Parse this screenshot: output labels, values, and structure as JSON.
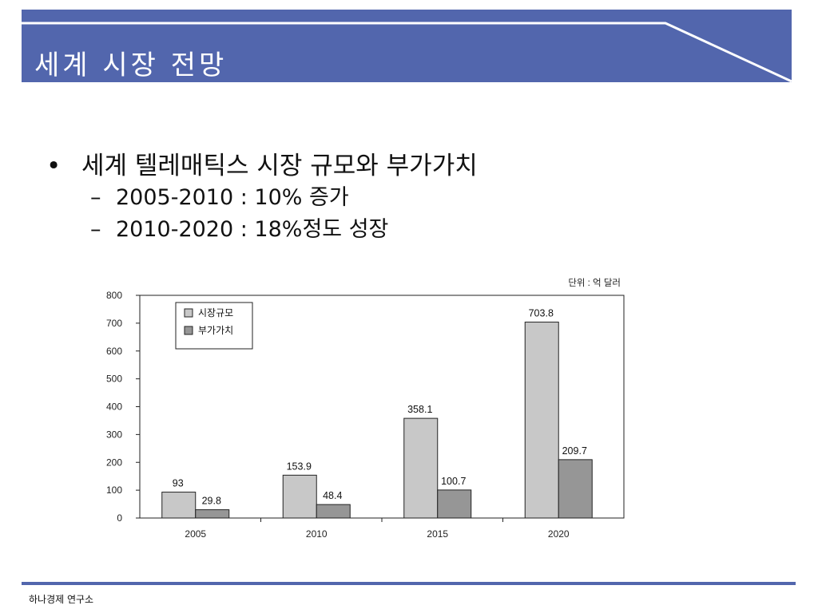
{
  "header": {
    "title": "세계 시장 전망"
  },
  "bullets": {
    "main": "세계  텔레매틱스 시장 규모와 부가가치",
    "sub": [
      "2005-2010 : 10% 증가",
      "2010-2020 : 18%정도 성장"
    ]
  },
  "footer": {
    "org": "하나경제 연구소"
  },
  "colors": {
    "accent": "#5266ad",
    "series1": "#c8c8c8",
    "series2": "#969696"
  },
  "chart_data": {
    "type": "bar",
    "unit_note": "단위 : 억 달러",
    "categories": [
      "2005",
      "2010",
      "2015",
      "2020"
    ],
    "series": [
      {
        "name": "시장규모",
        "values": [
          93,
          153.9,
          358.1,
          703.8
        ],
        "labels": [
          "93",
          "153.9",
          "358.1",
          "703.8"
        ]
      },
      {
        "name": "부가가치",
        "values": [
          29.8,
          48.4,
          100.7,
          209.7
        ],
        "labels": [
          "29.8",
          "48.4",
          "100.7",
          "209.7"
        ]
      }
    ],
    "yticks": [
      0,
      100,
      200,
      300,
      400,
      500,
      600,
      700,
      800
    ],
    "ylim": [
      0,
      800
    ],
    "legend": "top-left"
  }
}
